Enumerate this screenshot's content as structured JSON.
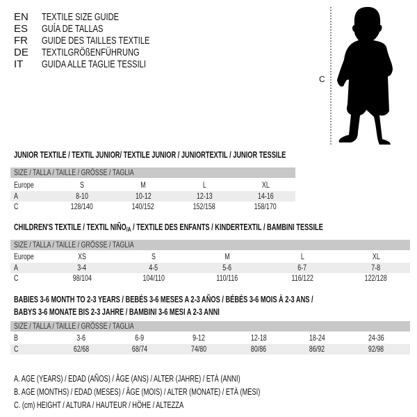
{
  "languages": [
    {
      "code": "EN",
      "text": "TEXTILE SIZE GUIDE"
    },
    {
      "code": "ES",
      "text": "GUÍA DE TALLAS"
    },
    {
      "code": "FR",
      "text": "GUIDE DES TAILLES TEXTILE"
    },
    {
      "code": "DE",
      "text": "TEXTILGRÖßENFÜHRUNG"
    },
    {
      "code": "IT",
      "text": "GUIDA ALLE TAGLIE TESSILI"
    }
  ],
  "figure": {
    "measure_label": "C",
    "icon": "child-silhouette-icon"
  },
  "junior": {
    "title": "JUNIOR TEXTILE / TEXTIL JUNIOR/ TEXTILE JUNIOR / JUNIORTEXTIL / JUNIOR TESSILE",
    "header": "SIZE / TALLA / TAILLE / GRÖSSE / TAGLIA",
    "rows": [
      {
        "label": "Europe",
        "values": [
          "S",
          "M",
          "L",
          "XL"
        ]
      },
      {
        "label": "A",
        "values": [
          "8-10",
          "10-12",
          "12-13",
          "14-16"
        ]
      },
      {
        "label": "C",
        "values": [
          "128/140",
          "140/152",
          "152/158",
          "158/170"
        ]
      }
    ]
  },
  "children": {
    "title_main": "CHILDREN'S TEXTILE / TEXTIL NIÑO",
    "title_sub": "/A",
    "title_rest": " / TEXTILE DES ENFANTS / KINDERTEXTIL / BAMBINI TESSILE",
    "header": "SIZE / TALLA / TAILLE / GRÖSSE / TAGLIA",
    "rows": [
      {
        "label": "Europe",
        "values": [
          "XS",
          "S",
          "M",
          "L",
          "XL"
        ]
      },
      {
        "label": "A",
        "values": [
          "3-4",
          "4-5",
          "5-6",
          "6-7",
          "7-8"
        ]
      },
      {
        "label": "C",
        "values": [
          "98/104",
          "104/110",
          "110/116",
          "116/122",
          "122/128"
        ]
      }
    ]
  },
  "babies": {
    "title_line1": "BABIES 3-6 MONTH TO 2-3 YEARS / BEBÉS 3-6 MESES A 2-3 AÑOS / BÉBÉS 3-6 MOIS À 2-3 ANS /",
    "title_line2": "BABYS 3-6 MONATE BIS 2-3 JAHRE / BAMBINI 3-6 MESI A 2-3 ANNI",
    "header": "SIZE / TALLA / TAILLE / GRÖSSE / TAGLIA",
    "rows": [
      {
        "label": "B",
        "values": [
          "3-6",
          "6-9",
          "9-12",
          "12-18",
          "18-24",
          "24-36"
        ]
      },
      {
        "label": "C",
        "values": [
          "62/68",
          "68/74",
          "74/80",
          "80/86",
          "86/92",
          "92/98"
        ]
      }
    ]
  },
  "legend": [
    "A. AGE (YEARS) / EDAD (AÑOS) / ÂGE (ANS) / ALTER (JAHRE) / ETÀ (ANNI)",
    "B. AGE (MONTHS) / EDAD (MESES) / ÂGE (MOIS) / ALTER (MONATE) / ETÀ (MESI)",
    "C. (cm) HEIGHT / ALTURA / HAUTEUR / HÖHE / ALTEZZA"
  ]
}
